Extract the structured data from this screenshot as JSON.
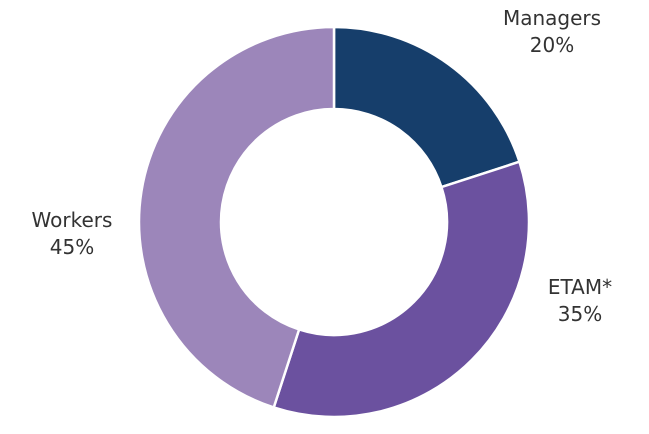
{
  "chart_data": {
    "type": "pie",
    "donut": true,
    "categories": [
      "Managers",
      "ETAM*",
      "Workers"
    ],
    "values": [
      20,
      35,
      45
    ],
    "value_labels": [
      "20%",
      "35%",
      "45%"
    ],
    "colors": [
      "#163e6b",
      "#6b519f",
      "#9c86ba"
    ],
    "start_angle_deg": 0,
    "direction": "clockwise",
    "title": ""
  }
}
